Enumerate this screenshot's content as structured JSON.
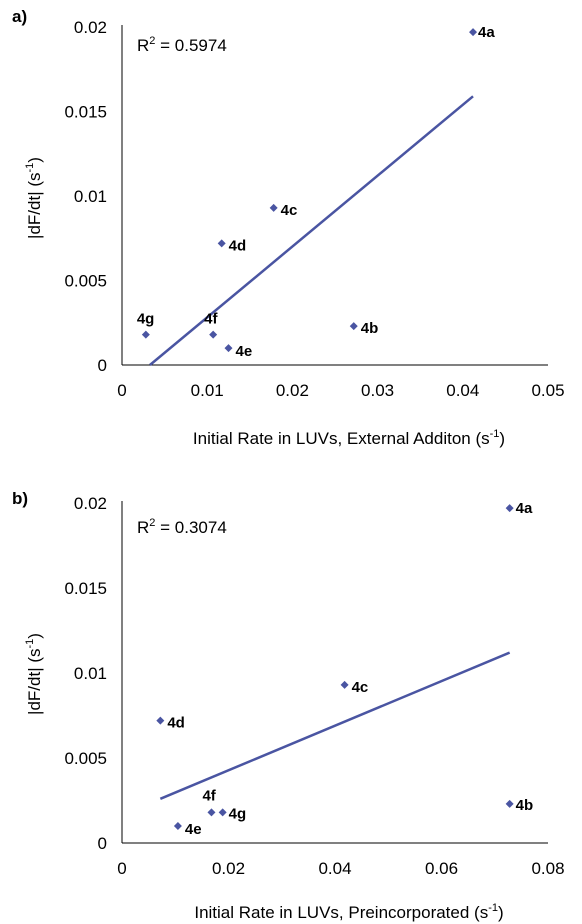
{
  "chart_data": [
    {
      "type": "scatter",
      "panel_label": "a)",
      "xlabel": "Initial Rate in LUVs, External Additon (s",
      "xlabel_sup": "-1",
      "xlabel_end": ")",
      "ylabel": "|dF/dt| (s",
      "ylabel_sup": "-1",
      "ylabel_end": ")",
      "xlim": [
        0,
        0.05
      ],
      "ylim": [
        0,
        0.02
      ],
      "x_ticks": [
        "0",
        "0.01",
        "0.02",
        "0.03",
        "0.04",
        "0.05"
      ],
      "y_ticks": [
        "0",
        "0.005",
        "0.01",
        "0.015",
        "0.02"
      ],
      "x_tick_values": [
        0,
        0.01,
        0.02,
        0.03,
        0.04,
        0.05
      ],
      "y_tick_values": [
        0,
        0.005,
        0.01,
        0.015,
        0.02
      ],
      "r2_prefix": "R",
      "r2_sup": "2",
      "r2_suffix": " = 0.5974",
      "points": [
        {
          "label": "4a",
          "x": 0.0412,
          "y": 0.0197
        },
        {
          "label": "4b",
          "x": 0.0272,
          "y": 0.0023
        },
        {
          "label": "4c",
          "x": 0.0178,
          "y": 0.0093
        },
        {
          "label": "4d",
          "x": 0.0117,
          "y": 0.0072
        },
        {
          "label": "4e",
          "x": 0.0125,
          "y": 0.001
        },
        {
          "label": "4f",
          "x": 0.0107,
          "y": 0.0018
        },
        {
          "label": "4g",
          "x": 0.0028,
          "y": 0.0018
        }
      ],
      "trendline": {
        "x": [
          0.0028,
          0.0412
        ],
        "y": [
          -0.0002,
          0.0159
        ]
      },
      "marker_color": "#4a55a2",
      "line_color": "#4a55a2"
    },
    {
      "type": "scatter",
      "panel_label": "b)",
      "xlabel": "Initial Rate in LUVs, Preincorporated (s",
      "xlabel_sup": "-1",
      "xlabel_end": ")",
      "ylabel": "|dF/dt| (s",
      "ylabel_sup": "-1",
      "ylabel_end": ")",
      "xlim": [
        0,
        0.08
      ],
      "ylim": [
        0,
        0.02
      ],
      "x_ticks": [
        "0",
        "0.02",
        "0.04",
        "0.06",
        "0.08"
      ],
      "y_ticks": [
        "0",
        "0.005",
        "0.01",
        "0.015",
        "0.02"
      ],
      "x_tick_values": [
        0,
        0.02,
        0.04,
        0.06,
        0.08
      ],
      "y_tick_values": [
        0,
        0.005,
        0.01,
        0.015,
        0.02
      ],
      "r2_prefix": "R",
      "r2_sup": "2",
      "r2_suffix": " = 0.3074",
      "points": [
        {
          "label": "4a",
          "x": 0.0728,
          "y": 0.0197
        },
        {
          "label": "4b",
          "x": 0.0728,
          "y": 0.0023
        },
        {
          "label": "4c",
          "x": 0.0418,
          "y": 0.0093
        },
        {
          "label": "4d",
          "x": 0.0072,
          "y": 0.0072
        },
        {
          "label": "4e",
          "x": 0.0105,
          "y": 0.001
        },
        {
          "label": "4f",
          "x": 0.0168,
          "y": 0.0018
        },
        {
          "label": "4g",
          "x": 0.0189,
          "y": 0.0018
        }
      ],
      "trendline": {
        "x": [
          0.0072,
          0.0728
        ],
        "y": [
          0.0026,
          0.0112
        ]
      },
      "marker_color": "#4a55a2",
      "line_color": "#4a55a2"
    }
  ]
}
